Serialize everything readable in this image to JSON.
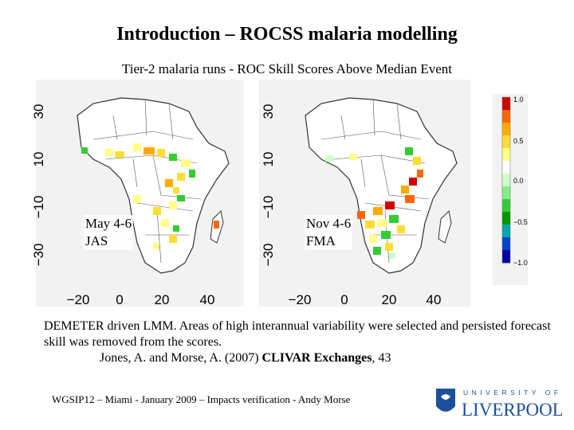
{
  "slide": {
    "title": "Introduction – ROCSS malaria modelling",
    "subtitle": "Tier-2 malaria runs  - ROC Skill Scores Above Median Event"
  },
  "maps": [
    {
      "line1": "May 4-6",
      "line2": "JAS"
    },
    {
      "line1": "Nov 4-6",
      "line2": "FMA"
    }
  ],
  "axes": {
    "y_ticks": [
      "30",
      "10",
      "−10",
      "−30"
    ],
    "x_ticks": [
      "−20",
      "0",
      "20",
      "40"
    ]
  },
  "colorbar": {
    "ticks": [
      "1.0",
      "0.5",
      "0.0",
      "−0.5",
      "−1.0"
    ],
    "colors": [
      "#d00000",
      "#ff6600",
      "#ffaa00",
      "#ffdd33",
      "#ffff88",
      "#ffffff",
      "#ccffcc",
      "#88ee88",
      "#33cc33",
      "#009900",
      "#00aaaa",
      "#0044cc",
      "#0000aa"
    ]
  },
  "description": {
    "text": "DEMETER driven LMM. Areas of high interannual variability were selected and persisted forecast skill was removed from the scores.",
    "citation_prefix": "Jones, A. and Morse, A. (2007) ",
    "citation_journal": "CLIVAR Exchanges",
    "citation_suffix": ", 43"
  },
  "footer": {
    "text": "WGSIP12 – Miami - January 2009 – Impacts verification - Andy Morse"
  },
  "logo": {
    "line1": "UNIVERSITY OF",
    "line2": "LIVERPOOL"
  }
}
